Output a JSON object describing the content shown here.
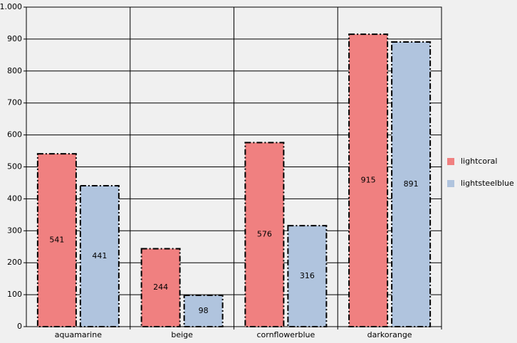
{
  "chart_data": {
    "type": "bar",
    "categories": [
      "aquamarine",
      "beige",
      "cornflowerblue",
      "darkorange"
    ],
    "series": [
      {
        "name": "lightcoral",
        "color": "#f08080",
        "values": [
          541,
          244,
          576,
          915
        ]
      },
      {
        "name": "lightsteelblue",
        "color": "#b0c4de",
        "values": [
          441,
          98,
          316,
          891
        ]
      }
    ],
    "ylim": [
      0,
      1000
    ],
    "yticks": [
      0,
      100,
      200,
      300,
      400,
      500,
      600,
      700,
      800,
      900,
      {
        "value": 1000,
        "label": "1.000"
      }
    ],
    "grid": true,
    "legend": "right"
  }
}
